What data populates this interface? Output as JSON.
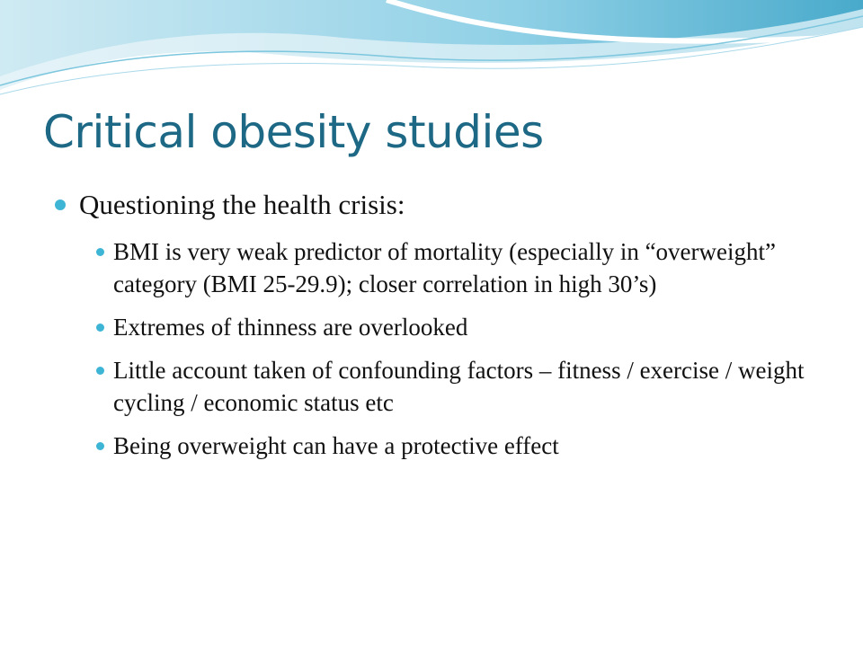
{
  "title": "Critical obesity studies",
  "bullets": [
    {
      "text": "Questioning the health crisis:",
      "items": [
        "BMI is very weak predictor of mortality (especially in “overweight” category (BMI 25-29.9); closer correlation in high 30’s)",
        "Extremes of thinness are overlooked",
        "Little account taken of confounding factors – fitness / exercise / weight cycling / economic status etc",
        "Being overweight can have a protective effect"
      ]
    }
  ]
}
